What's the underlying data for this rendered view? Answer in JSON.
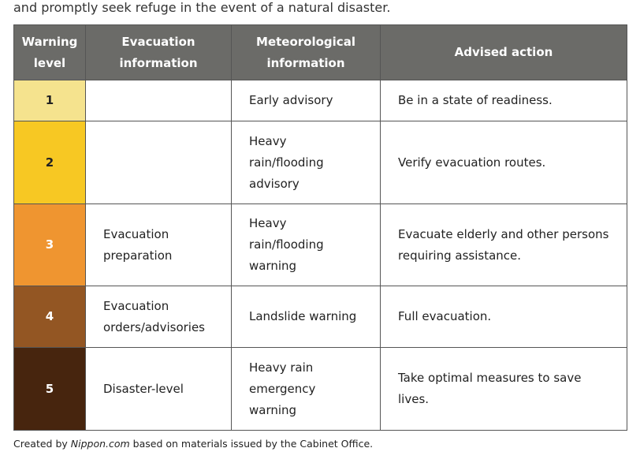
{
  "intro_text": "and promptly seek refuge in the event of a natural disaster.",
  "headers": [
    "Warning level",
    "Evacuation information",
    "Meteorological information",
    "Advised action"
  ],
  "rows": [
    {
      "level": "1",
      "color": "#f5e38e",
      "text_color": "#222222",
      "evacuation": "",
      "meteorological": "Early advisory",
      "action": "Be in a state of readiness."
    },
    {
      "level": "2",
      "color": "#f7c823",
      "text_color": "#222222",
      "evacuation": "",
      "meteorological": "Heavy rain/flooding advisory",
      "action": "Verify evacuation routes."
    },
    {
      "level": "3",
      "color": "#ef9530",
      "text_color": "#ffffff",
      "evacuation": "Evacuation preparation",
      "meteorological": "Heavy rain/flooding warning",
      "action": "Evacuate elderly and other persons requiring assistance."
    },
    {
      "level": "4",
      "color": "#935623",
      "text_color": "#ffffff",
      "evacuation": "Evacuation orders/advisories",
      "meteorological": "Landslide warning",
      "action": "Full evacuation."
    },
    {
      "level": "5",
      "color": "#47250e",
      "text_color": "#ffffff",
      "evacuation": "Disaster-level",
      "meteorological": "Heavy rain emergency warning",
      "action": "Take optimal measures to save lives."
    }
  ],
  "footnote": {
    "prefix": "Created by ",
    "source": "Nippon.com",
    "suffix": " based on materials issued by the Cabinet Office."
  }
}
